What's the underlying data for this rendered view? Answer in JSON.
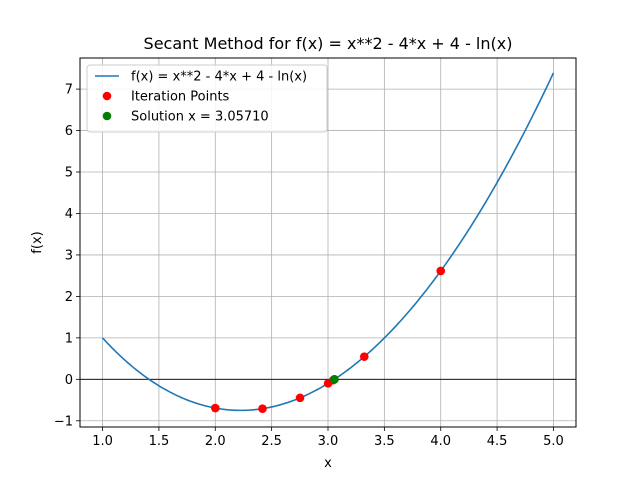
{
  "chart_data": {
    "type": "line",
    "title": "Secant Method for f(x) = x**2 - 4*x + 4 - ln(x)",
    "xlabel": "x",
    "ylabel": "f(x)",
    "xlim": [
      0.8,
      5.2
    ],
    "ylim": [
      -1.15,
      7.75
    ],
    "x_ticks": [
      1.0,
      1.5,
      2.0,
      2.5,
      3.0,
      3.5,
      4.0,
      4.5,
      5.0
    ],
    "x_tick_labels": [
      "1.0",
      "1.5",
      "2.0",
      "2.5",
      "3.0",
      "3.5",
      "4.0",
      "4.5",
      "5.0"
    ],
    "y_ticks": [
      -1,
      0,
      1,
      2,
      3,
      4,
      5,
      6,
      7
    ],
    "y_tick_labels": [
      "−1",
      "0",
      "1",
      "2",
      "3",
      "4",
      "5",
      "6",
      "7"
    ],
    "grid": true,
    "hline_y": 0,
    "legend_position": "top-left",
    "series": [
      {
        "name": "f(x) = x**2 - 4*x + 4 - ln(x)",
        "kind": "line",
        "color": "#1f77b4",
        "function": "x**2 - 4*x + 4 - ln(x)",
        "x_range": [
          1.0,
          5.0
        ]
      },
      {
        "name": "Iteration Points",
        "kind": "scatter",
        "color": "#ff0000",
        "points": [
          [
            2.0,
            -0.693
          ],
          [
            4.0,
            2.614
          ],
          [
            2.419,
            -0.708
          ],
          [
            2.752,
            -0.447
          ],
          [
            3.322,
            0.547
          ],
          [
            3.001,
            -0.098
          ],
          [
            3.046,
            -0.022
          ],
          [
            3.057,
            0.0
          ]
        ]
      },
      {
        "name": "Solution x = 3.05710",
        "kind": "scatter",
        "color": "#008000",
        "points": [
          [
            3.0571,
            0.0
          ]
        ]
      }
    ]
  }
}
